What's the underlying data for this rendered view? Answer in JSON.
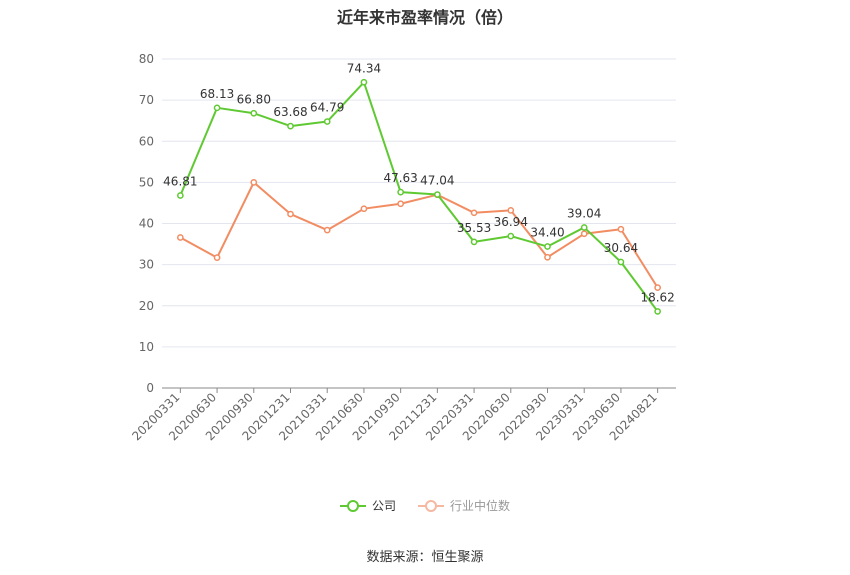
{
  "chart_data": {
    "type": "line",
    "title": "近年来市盈率情况（倍）",
    "categories": [
      "20200331",
      "20200630",
      "20200930",
      "20201231",
      "20210331",
      "20210630",
      "20210930",
      "20211231",
      "20220331",
      "20220630",
      "20220930",
      "20230331",
      "20230630",
      "20240821"
    ],
    "series": [
      {
        "name": "公司",
        "color": "#5fc932",
        "values": [
          46.81,
          68.13,
          66.8,
          63.68,
          64.79,
          74.34,
          47.63,
          47.04,
          35.53,
          36.94,
          34.4,
          39.04,
          30.64,
          18.62
        ],
        "labels": [
          "46.81",
          "68.13",
          "66.80",
          "63.68",
          "64.79",
          "74.34",
          "47.63",
          "47.04",
          "35.53",
          "36.94",
          "34.40",
          "39.04",
          "30.64",
          "18.62"
        ]
      },
      {
        "name": "行业中位数",
        "color": "#f28c62",
        "values": [
          36.6,
          31.7,
          50.0,
          42.3,
          38.4,
          43.6,
          44.8,
          47.0,
          42.6,
          43.2,
          31.8,
          37.5,
          38.6,
          24.4
        ]
      }
    ],
    "ylim": [
      0,
      80
    ],
    "yticks": [
      "0",
      "10",
      "20",
      "30",
      "40",
      "50",
      "60",
      "70",
      "80"
    ],
    "grid": true,
    "legend_position": "bottom"
  },
  "footer": {
    "source": "数据来源：恒生聚源"
  }
}
